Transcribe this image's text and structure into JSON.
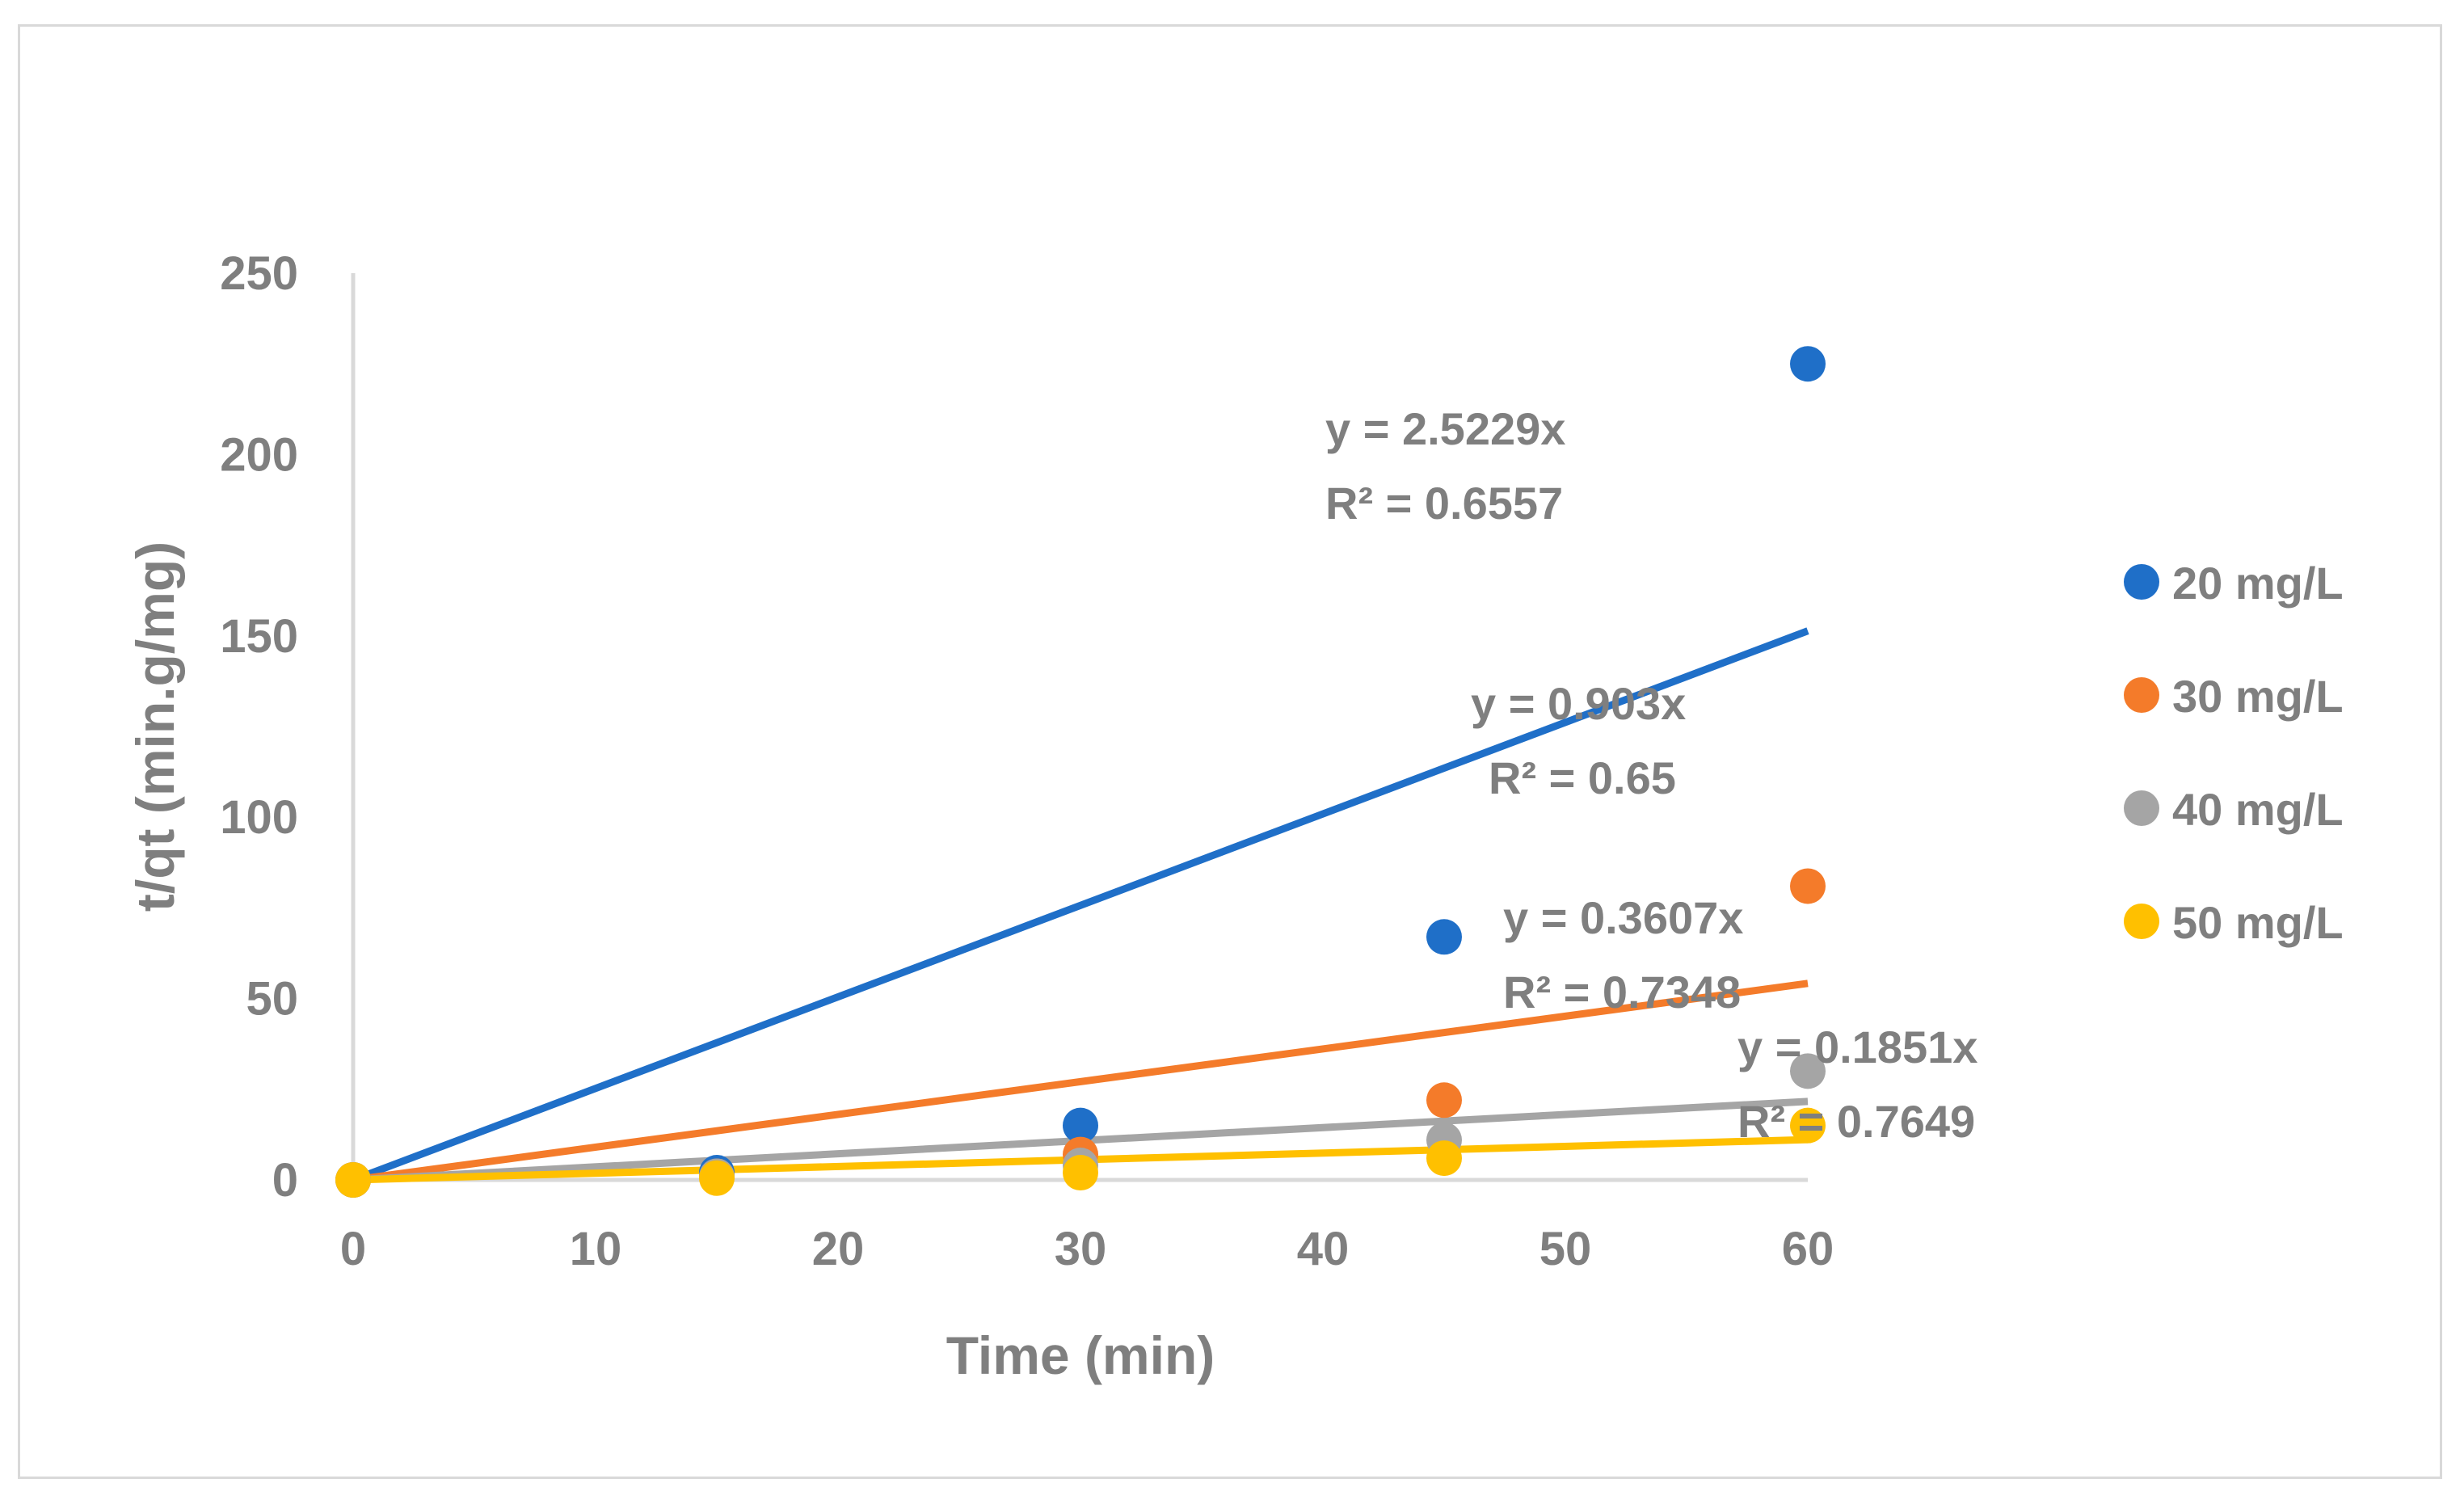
{
  "chart_data": {
    "type": "scatter",
    "title": "",
    "xlabel": "Time (min)",
    "ylabel": "t/qt (min.g/mg)",
    "xlim": [
      0,
      60
    ],
    "ylim": [
      0,
      250
    ],
    "xticks": [
      0,
      10,
      20,
      30,
      40,
      50,
      60
    ],
    "yticks": [
      0,
      50,
      100,
      150,
      200,
      250
    ],
    "grid": false,
    "legend_position": "right",
    "series": [
      {
        "name": "20 mg/L",
        "color": "#1f6fc8",
        "x": [
          0,
          15,
          30,
          45,
          60
        ],
        "y": [
          0,
          2,
          15,
          67,
          225
        ],
        "trendline": {
          "slope": 2.5229,
          "equation": "y = 2.5229x",
          "r2": "R² = 0.6557"
        }
      },
      {
        "name": "30 mg/L",
        "color": "#f47b2a",
        "x": [
          0,
          15,
          30,
          45,
          60
        ],
        "y": [
          0,
          1,
          7,
          22,
          81
        ],
        "trendline": {
          "slope": 0.903,
          "equation": "y = 0.903x",
          "r2": "R² = 0.65"
        }
      },
      {
        "name": "40 mg/L",
        "color": "#a5a5a5",
        "x": [
          0,
          15,
          30,
          45,
          60
        ],
        "y": [
          0,
          1,
          4,
          11,
          30
        ],
        "trendline": {
          "slope": 0.3607,
          "equation": "y = 0.3607x",
          "r2": "R² = 0.7348"
        }
      },
      {
        "name": "50 mg/L",
        "color": "#ffc000",
        "x": [
          0,
          15,
          30,
          45,
          60
        ],
        "y": [
          0,
          0.5,
          2,
          6,
          15
        ],
        "trendline": {
          "slope": 0.1851,
          "equation": "y = 0.1851x",
          "r2": "R² = 0.7649"
        }
      }
    ]
  }
}
